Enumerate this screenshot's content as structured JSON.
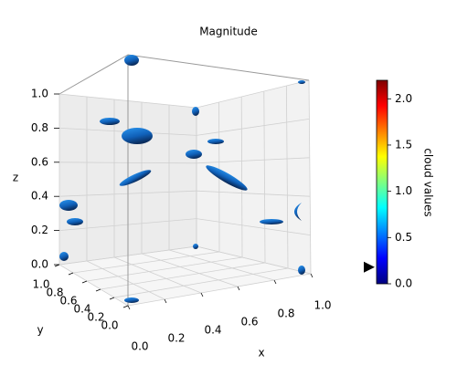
{
  "chart_data": {
    "type": "isosurface3d",
    "title": "Magnitude",
    "xlabel": "x",
    "ylabel": "y",
    "zlabel": "z",
    "xlim": [
      0,
      1
    ],
    "ylim": [
      0,
      1
    ],
    "zlim": [
      0,
      1
    ],
    "xticks": [
      {
        "value": 0,
        "label": "0.0"
      },
      {
        "value": 0.2,
        "label": "0.2"
      },
      {
        "value": 0.4,
        "label": "0.4"
      },
      {
        "value": 0.6,
        "label": "0.6"
      },
      {
        "value": 0.8,
        "label": "0.8"
      },
      {
        "value": 1,
        "label": "1.0"
      }
    ],
    "yticks": [
      {
        "value": 0,
        "label": "0.0"
      },
      {
        "value": 0.2,
        "label": "0.2"
      },
      {
        "value": 0.4,
        "label": "0.4"
      },
      {
        "value": 0.6,
        "label": "0.6"
      },
      {
        "value": 0.8,
        "label": "0.8"
      },
      {
        "value": 1,
        "label": "1.0"
      }
    ],
    "zticks": [
      {
        "value": 0,
        "label": "0.0"
      },
      {
        "value": 0.2,
        "label": "0.2"
      },
      {
        "value": 0.4,
        "label": "0.4"
      },
      {
        "value": 0.6,
        "label": "0.6"
      },
      {
        "value": 0.8,
        "label": "0.8"
      },
      {
        "value": 1,
        "label": "1.0"
      }
    ],
    "grid": true,
    "colorbar": {
      "label": "cloud values",
      "colormap": "jet",
      "lim": [
        0,
        2.2
      ],
      "ticks": [
        {
          "value": 0,
          "label": "0.0"
        },
        {
          "value": 0.5,
          "label": "0.5"
        },
        {
          "value": 1,
          "label": "1.0"
        },
        {
          "value": 1.5,
          "label": "1.5"
        },
        {
          "value": 2,
          "label": "2.0"
        }
      ],
      "level": 0.18
    }
  }
}
